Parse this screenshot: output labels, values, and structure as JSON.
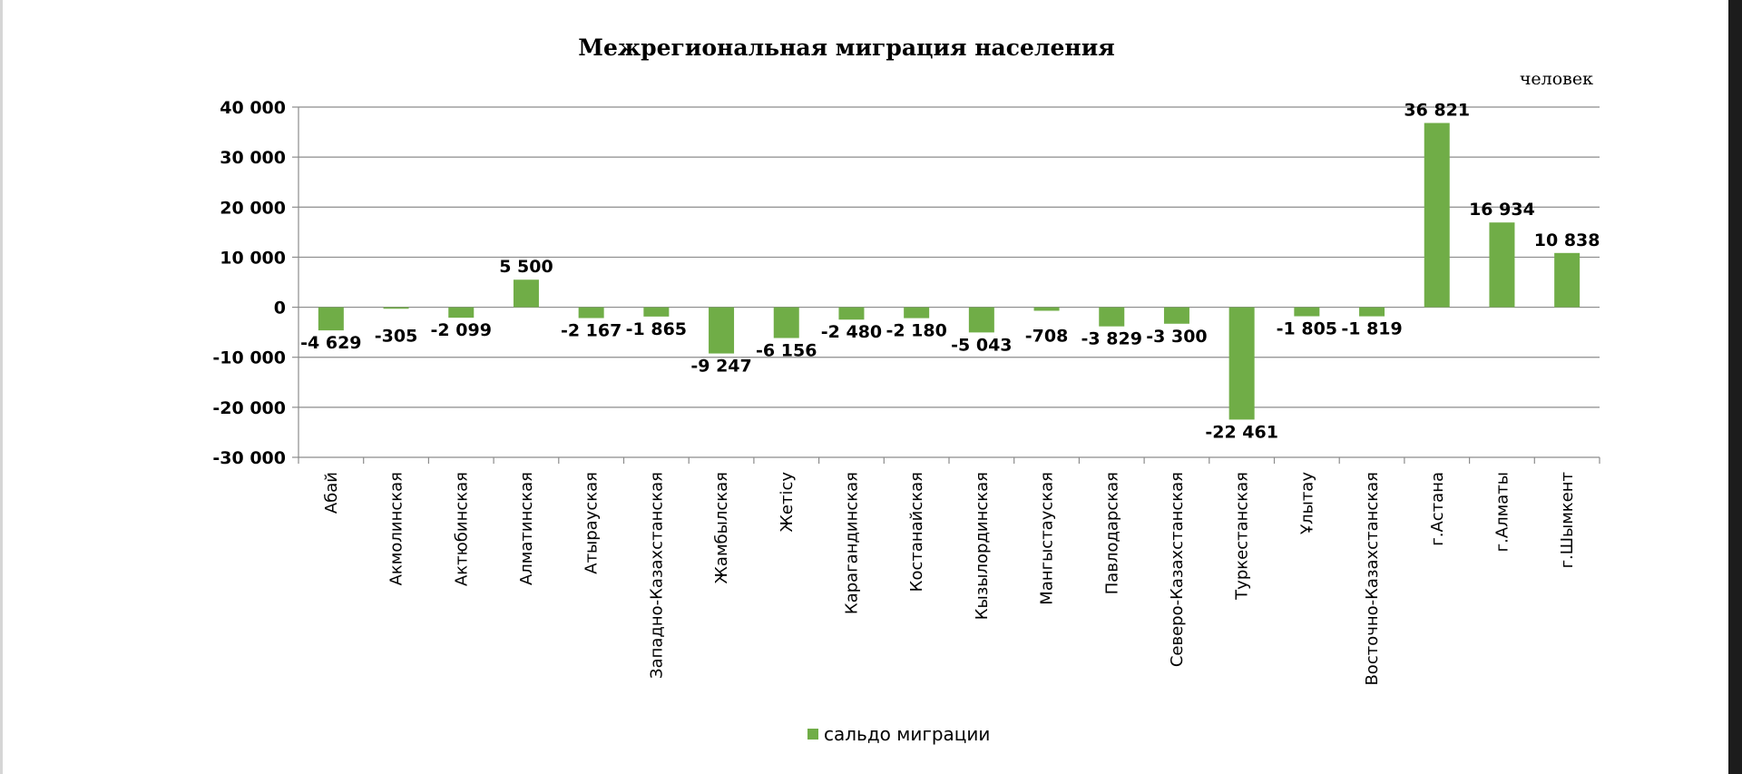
{
  "chart_data": {
    "type": "bar",
    "title": "Межрегиональная миграция населения",
    "unit_label": "человек",
    "ylim": [
      -30000,
      40000
    ],
    "yticks": [
      40000,
      30000,
      20000,
      10000,
      0,
      -10000,
      -20000,
      -30000
    ],
    "ytick_labels": [
      "40 000",
      "30 000",
      "20 000",
      "10 000",
      "0",
      "-10 000",
      "-20 000",
      "-30 000"
    ],
    "grid": true,
    "legend_position": "bottom",
    "color": "#70ad47",
    "categories": [
      "Абай",
      "Акмолинская",
      "Актюбинская",
      "Алматинская",
      "Атырауская",
      "Западно-Казахстанская",
      "Жамбылская",
      "Жетісу",
      "Карагандинская",
      "Костанайская",
      "Кызылординская",
      "Мангыстауская",
      "Павлодарская",
      "Северо-Казахстанская",
      "Туркестанская",
      "Ұлытау",
      "Восточно-Казахстанская",
      "г.Астана",
      "г.Алматы",
      "г.Шымкент"
    ],
    "series": [
      {
        "name": "сальдо миграции",
        "values": [
          -4629,
          -305,
          -2099,
          5500,
          -2167,
          -1865,
          -9247,
          -6156,
          -2480,
          -2180,
          -5043,
          -708,
          -3829,
          -3300,
          -22461,
          -1805,
          -1819,
          36821,
          16934,
          10838
        ],
        "labels": [
          "-4 629",
          "-305",
          "-2 099",
          "5 500",
          "-2 167",
          "-1 865",
          "-9 247",
          "-6 156",
          "-2 480",
          "-2 180",
          "-5 043",
          "-708",
          "-3 829",
          "-3 300",
          "-22 461",
          "-1 805",
          "-1 819",
          "36 821",
          "16 934",
          "10 838"
        ]
      }
    ]
  }
}
